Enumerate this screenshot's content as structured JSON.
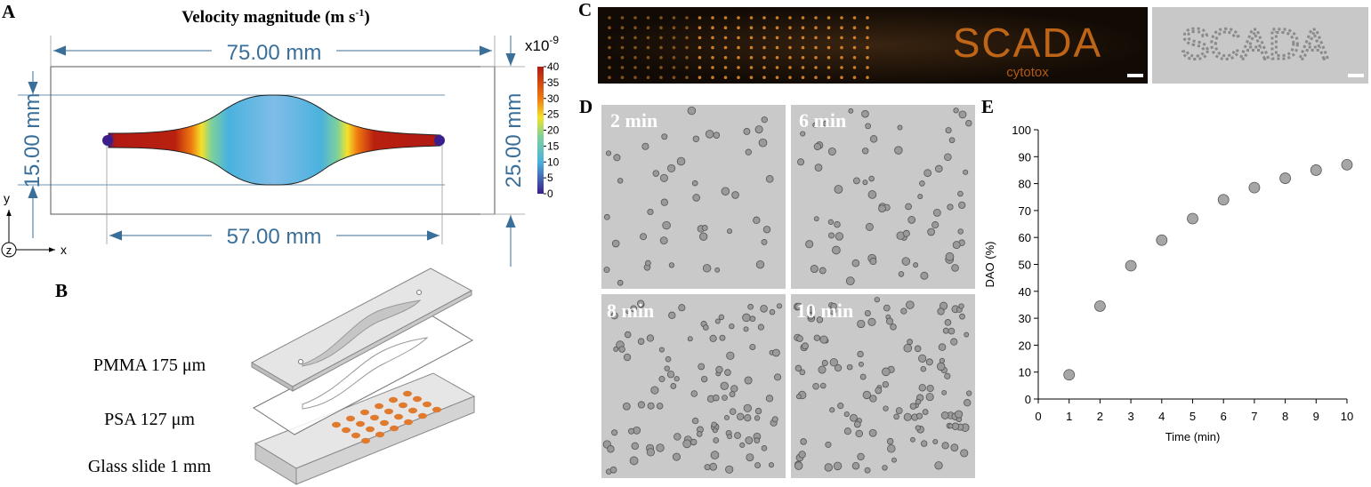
{
  "panel_labels": [
    "A",
    "B",
    "C",
    "D",
    "E"
  ],
  "panel_a": {
    "title": {
      "main": "Velocity magnitude (m s",
      "sup": "-1",
      "end": ")"
    },
    "dimensions": {
      "width_total": "75.00 mm",
      "width_channel": "57.00 mm",
      "height_channel": "15.00 mm",
      "height_total": "25.00 mm"
    },
    "colorbar": {
      "multiplier": "x10",
      "exponent": "-9",
      "lim": [
        0,
        40
      ],
      "ticks": [
        0,
        5,
        10,
        15,
        20,
        25,
        30,
        35,
        40
      ]
    },
    "axes": {
      "y": "y",
      "x": "x",
      "z": "z"
    }
  },
  "panel_b": {
    "layers": [
      "PMMA 175 μm",
      "PSA 127 μm",
      "Glass slide 1 mm"
    ]
  },
  "panel_c": {
    "logo": "SCADA",
    "logo_subtitle": "cytotox"
  },
  "panel_d": {
    "time_labels": [
      "2 min",
      "6 min",
      "8 min",
      "10 min"
    ]
  },
  "chart_data": {
    "type": "scatter",
    "x": [
      1,
      2,
      3,
      4,
      5,
      6,
      7,
      8,
      9,
      10
    ],
    "values": [
      9,
      34.5,
      49.5,
      59,
      67,
      74,
      78.5,
      82,
      85,
      87
    ],
    "color": "#a6a6a6",
    "x_label": "Time (min)",
    "y_label": "DAO (%)",
    "xlim": [
      0,
      10
    ],
    "ylim": [
      0,
      100
    ],
    "xticks": [
      0,
      1,
      2,
      3,
      4,
      5,
      6,
      7,
      8,
      9,
      10
    ],
    "yticks": [
      0,
      10,
      20,
      30,
      40,
      50,
      60,
      70,
      80,
      90,
      100
    ]
  }
}
